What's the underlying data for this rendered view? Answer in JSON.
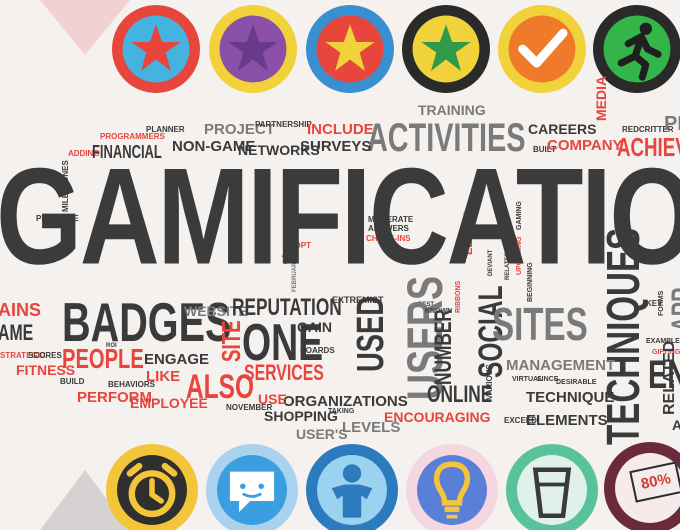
{
  "title": "GAMIFICATION",
  "colors": {
    "dark_text": "#3a3a3a",
    "grey_text": "#7a7a7a",
    "red_text": "#e8453c"
  },
  "top_badges": [
    {
      "icon": "star-icon",
      "ring": "#e8453c",
      "fill": "#44b3e0",
      "glyph": "#e8453c"
    },
    {
      "icon": "star-icon",
      "ring": "#f2d23a",
      "fill": "#8a4fa6",
      "glyph": "#6a3a8a"
    },
    {
      "icon": "star-icon",
      "ring": "#3a8fd0",
      "fill": "#e8453c",
      "glyph": "#f2d23a"
    },
    {
      "icon": "star-icon",
      "ring": "#2a2a2a",
      "fill": "#f2d23a",
      "glyph": "#2e9a4a"
    },
    {
      "icon": "checkmark-icon",
      "ring": "#f2d23a",
      "fill": "#ef7a2a",
      "glyph": "#ffffff"
    },
    {
      "icon": "running-man-icon",
      "ring": "#2a2a2a",
      "fill": "#34b54a",
      "glyph": "#1f1f1f"
    }
  ],
  "bottom_badges": [
    {
      "icon": "alarm-clock-icon",
      "ring": "#f2c53a",
      "fill": "#2f2f2f",
      "glyph": "#f2c53a"
    },
    {
      "icon": "chat-bubble-icon",
      "ring": "#a9d2ee",
      "fill": "#3a9ee0",
      "glyph": "#ffffff"
    },
    {
      "icon": "user-icon",
      "ring": "#2c7bbf",
      "fill": "#9bd2ef",
      "glyph": "#2c7bbf"
    },
    {
      "icon": "lightbulb-icon",
      "ring": "#f5d7e2",
      "fill": "#5a7fd6",
      "glyph": "#f2c53a"
    },
    {
      "icon": "cup-icon",
      "ring": "#58c39a",
      "fill": "#dff1ea",
      "glyph": "#3a3a3a"
    },
    {
      "icon": "price-tag-icon",
      "ring": "#6a2a3a",
      "fill": "#f6eaea",
      "glyph": "#2a2a2a"
    }
  ],
  "price_tag_label": "80%",
  "words": [
    "TRAINING",
    "ACTIVITIES",
    "CAREERS",
    "MEDIA",
    "REDCRITTER",
    "PL",
    "ACHIEVE",
    "PROJECT",
    "PARTNERSHIP",
    "INCLUDE",
    "PLANNER",
    "PROGRAMMERS",
    "ADDING",
    "FINANCIAL",
    "NON-GAME",
    "NETWORKS",
    "SURVEYS",
    "BUILT",
    "COMPANY",
    "MILESTONES",
    "PRIVILEGE",
    "MODERATE",
    "ANSWERS",
    "CHECK-INS",
    "LEVINE",
    "GAMING",
    "UPCOMING",
    "RELATES",
    "DEVIANT",
    "BEGINNING",
    "ADOPT",
    "TV",
    "FEBRUARY",
    "BEST",
    "KEY",
    "FORMS",
    "EXAMPLES",
    "GIFTING",
    "APP",
    "AINS",
    "AME",
    "BADGES",
    "WEBSITE",
    "REPUTATION",
    "EXTREMIST",
    "GAIN",
    "USED",
    "USERS",
    "NUMBER",
    "KNOWN",
    "SOCIAL",
    "SITES",
    "TECHNIQUES",
    "RIBBONS",
    "RELATED",
    "ONE",
    "SITE",
    "BOARDS",
    "STRATEGIC",
    "SCORES",
    "FITNESS",
    "PEOPLE",
    "ENGAGE",
    "LIKE",
    "BUILD",
    "BEHAVIORS",
    "PERFORM",
    "EMPLOYEE",
    "ALSO",
    "SERVICES",
    "ORGANIZATIONS",
    "SHOPPING",
    "TAKING",
    "USER'S",
    "LEVELS",
    "NOVEMBER",
    "USE",
    "ONLINE",
    "VARIOUS",
    "ENCOURAGING",
    "MANAGEMENT",
    "VIRTUAL",
    "SINCE",
    "DESIRABLE",
    "TECHNIQUE",
    "EXCEED",
    "ELEMENTS",
    "ROI",
    "ENG",
    "ADE"
  ]
}
